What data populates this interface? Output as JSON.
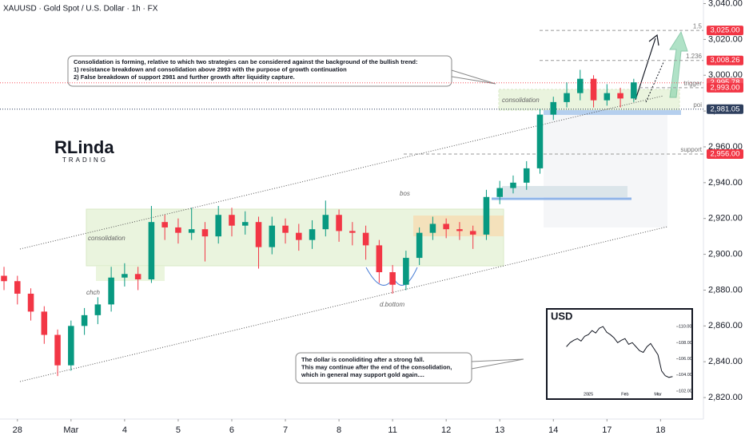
{
  "chart_data": [
    {
      "type": "candlestick",
      "title": "XAUUSD · Gold Spot / U.S. Dollar · 1h · FX",
      "x": [
        -2,
        0,
        2,
        4,
        6,
        8,
        10,
        12,
        14,
        16,
        18,
        20,
        22,
        24,
        26,
        28,
        30,
        32,
        34,
        36,
        38,
        40,
        42,
        44,
        46,
        48,
        50,
        52,
        54,
        56,
        58,
        60,
        62,
        64,
        66,
        68,
        70,
        72,
        74,
        76,
        78,
        80,
        82,
        84,
        86,
        88,
        90,
        92
      ],
      "open": [
        2888,
        2885,
        2878,
        2868,
        2855,
        2838,
        2860,
        2866,
        2872,
        2887,
        2889,
        2886,
        2918,
        2915,
        2912,
        2914,
        2910,
        2922,
        2916,
        2918,
        2904,
        2916,
        2912,
        2908,
        2914,
        2922,
        2913,
        2912,
        2905,
        2890,
        2883,
        2898,
        2912,
        2917,
        2914,
        2913,
        2911,
        2932,
        2937,
        2940,
        2948,
        2978,
        2985,
        2990,
        2998,
        2986,
        2990,
        2987
      ],
      "high": [
        2893,
        2888,
        2881,
        2871,
        2858,
        2863,
        2870,
        2876,
        2893,
        2895,
        2893,
        2927,
        2922,
        2920,
        2926,
        2918,
        2927,
        2926,
        2924,
        2921,
        2921,
        2920,
        2917,
        2919,
        2930,
        2925,
        2918,
        2916,
        2908,
        2894,
        2902,
        2915,
        2921,
        2920,
        2918,
        2916,
        2936,
        2941,
        2944,
        2952,
        2981,
        2988,
        2996,
        3003,
        3000,
        2995,
        2993,
        2998
      ],
      "low": [
        2880,
        2872,
        2863,
        2850,
        2832,
        2835,
        2855,
        2861,
        2868,
        2882,
        2880,
        2884,
        2908,
        2906,
        2908,
        2896,
        2906,
        2910,
        2911,
        2892,
        2900,
        2906,
        2902,
        2903,
        2910,
        2907,
        2905,
        2897,
        2884,
        2878,
        2880,
        2894,
        2908,
        2909,
        2908,
        2903,
        2908,
        2928,
        2934,
        2936,
        2945,
        2975,
        2982,
        2986,
        2982,
        2983,
        2982,
        2985
      ],
      "close": [
        2885,
        2878,
        2868,
        2855,
        2838,
        2860,
        2866,
        2872,
        2887,
        2889,
        2886,
        2918,
        2915,
        2912,
        2914,
        2910,
        2922,
        2916,
        2918,
        2904,
        2916,
        2912,
        2908,
        2914,
        2922,
        2913,
        2912,
        2905,
        2890,
        2883,
        2898,
        2912,
        2917,
        2914,
        2913,
        2911,
        2932,
        2937,
        2940,
        2948,
        2978,
        2985,
        2990,
        2998,
        2986,
        2990,
        2987,
        2996
      ],
      "up_color": "#089981",
      "down_color": "#f23645",
      "xlim": [
        -2.6,
        102.4
      ],
      "xticks": [
        {
          "value": 0,
          "label": "28"
        },
        {
          "value": 8,
          "label": "Mar"
        },
        {
          "value": 16,
          "label": "4"
        },
        {
          "value": 24,
          "label": "5"
        },
        {
          "value": 32,
          "label": "6"
        },
        {
          "value": 40,
          "label": "7"
        },
        {
          "value": 48,
          "label": "8"
        },
        {
          "value": 56,
          "label": "11"
        },
        {
          "value": 64,
          "label": "12"
        },
        {
          "value": 72,
          "label": "13"
        },
        {
          "value": 80,
          "label": "14"
        },
        {
          "value": 88,
          "label": "17"
        },
        {
          "value": 96,
          "label": "18"
        }
      ],
      "ylim": [
        2808,
        3042
      ],
      "yticks": [
        {
          "value": 2820,
          "label": "2,820.00"
        },
        {
          "value": 2840,
          "label": "2,840.00"
        },
        {
          "value": 2860,
          "label": "2,860.00"
        },
        {
          "value": 2880,
          "label": "2,880.00"
        },
        {
          "value": 2900,
          "label": "2,900.00"
        },
        {
          "value": 2920,
          "label": "2,920.00"
        },
        {
          "value": 2940,
          "label": "2,940.00"
        },
        {
          "value": 2960,
          "label": "2,960.00"
        },
        {
          "value": 2980,
          "label": "2,980.00"
        },
        {
          "value": 3000,
          "label": "3,000.00"
        },
        {
          "value": 3020,
          "label": "3,020.00"
        },
        {
          "value": 3040,
          "label": "3,040.00"
        }
      ],
      "levels": [
        {
          "value": 3025,
          "label": "3,025.00",
          "name": "1.5",
          "color": "#f23645"
        },
        {
          "value": 3008.26,
          "label": "3,008.26",
          "name": "1.236",
          "color": "#f23645"
        },
        {
          "value": 2995.78,
          "label": "2,995.78",
          "color": "#f7525f"
        },
        {
          "value": 2993,
          "label": "2,993.00",
          "name": "trigger",
          "color": "#f23645"
        },
        {
          "value": 2981.05,
          "label": "2,981.05",
          "name": "poi",
          "color": "#2e3f5e"
        },
        {
          "value": 2956,
          "label": "2,956.00",
          "name": "support",
          "color": "#f23645"
        }
      ],
      "labels": [
        "consolidation",
        "chch",
        "bos",
        "d.bottom",
        "consolidation"
      ],
      "callouts": [
        [
          "Consolidation is forming, relative to which two strategies can be considered against the background of the bullish trend:",
          "1) resistance breakdown and consolidation above 2993 with the purpose of growth continuation",
          "2) False breakdown of support 2981 and further growth after liquidity capture."
        ],
        [
          "The dollar is conoliditing after a strong fall.",
          "This may continue after the end of the consolidation,",
          "which in general may support gold again...."
        ]
      ]
    },
    {
      "type": "line",
      "title": "USD",
      "x": [
        0,
        1,
        2,
        3,
        4,
        5,
        6,
        7,
        8,
        9,
        10,
        11,
        12,
        13,
        14,
        15,
        16,
        17,
        18,
        19,
        20,
        21,
        22,
        23,
        24,
        25,
        26,
        27,
        28,
        29
      ],
      "values": [
        107.5,
        108,
        108.3,
        108.5,
        108.2,
        108.8,
        109,
        109.5,
        109.2,
        109.8,
        110,
        109.3,
        109,
        108.6,
        108,
        108.3,
        108.5,
        107.8,
        108,
        107.5,
        107,
        106.8,
        107.5,
        107.9,
        107.2,
        106.5,
        104.5,
        103.9,
        103.7,
        103.8
      ],
      "color": "#131722",
      "xlim": [
        -1,
        30
      ],
      "ylim": [
        101.8,
        110.9
      ],
      "xticks": [
        {
          "value": 6,
          "label": "2025"
        },
        {
          "value": 16,
          "label": "Feb"
        },
        {
          "value": 25,
          "label": "Mar"
        }
      ],
      "yticks": [
        {
          "value": 102,
          "label": "102.00"
        },
        {
          "value": 104,
          "label": "104.00"
        },
        {
          "value": 106,
          "label": "106.00"
        },
        {
          "value": 108,
          "label": "108.00"
        },
        {
          "value": 110,
          "label": "110.00"
        }
      ]
    }
  ],
  "logo": {
    "name": "RLinda",
    "sub": "TRADING"
  }
}
